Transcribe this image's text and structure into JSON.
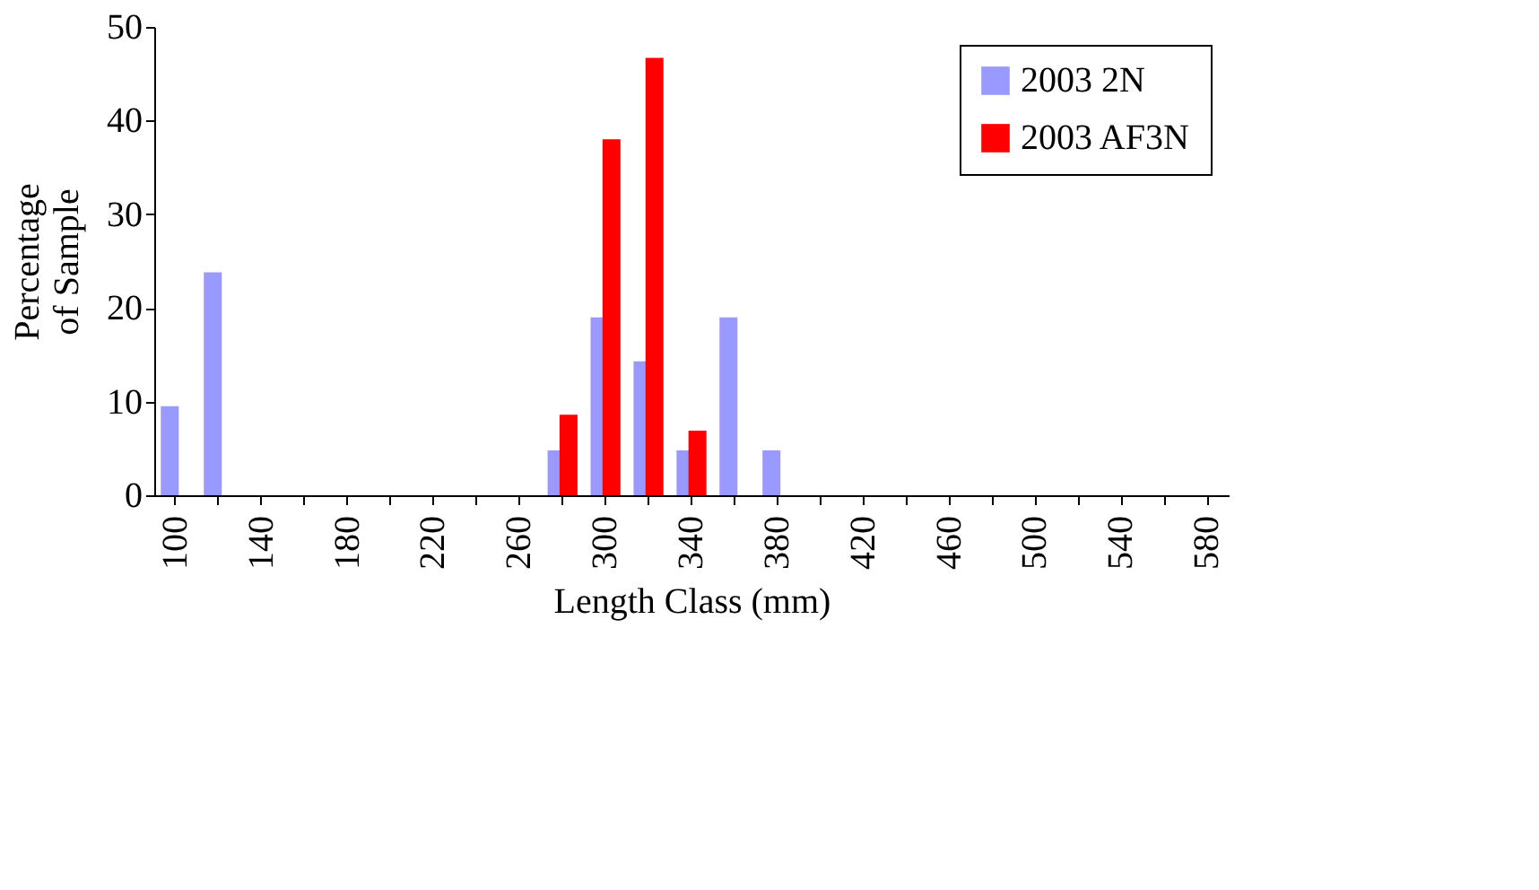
{
  "chart_data": {
    "type": "bar",
    "xlabel": "Length Class  (mm)",
    "ylabel": "Percentage\nof Sample",
    "categories": [
      "100",
      null,
      "140",
      null,
      "180",
      null,
      "220",
      null,
      "260",
      null,
      "300",
      null,
      "340",
      null,
      "380",
      null,
      "420",
      null,
      "460",
      null,
      "500",
      null,
      "540",
      null,
      "580"
    ],
    "series": [
      {
        "name": "2003 2N",
        "color": "#9999ff",
        "values": [
          9.5,
          23.8,
          0,
          0,
          0,
          0,
          0,
          0,
          0,
          4.8,
          19,
          14.3,
          4.8,
          19,
          4.8,
          0,
          0,
          0,
          0,
          0,
          0,
          0,
          0,
          0,
          0
        ]
      },
      {
        "name": "2003 AF3N",
        "color": "#ff0000",
        "values": [
          0,
          0,
          0,
          0,
          0,
          0,
          0,
          0,
          0,
          8.6,
          38,
          46.7,
          6.9,
          0,
          0,
          0,
          0,
          0,
          0,
          0,
          0,
          0,
          0,
          0,
          0
        ]
      }
    ],
    "ylim": [
      0,
      50
    ],
    "yticks": [
      0,
      10,
      20,
      30,
      40,
      50
    ],
    "grid": false,
    "legend": "top right"
  }
}
